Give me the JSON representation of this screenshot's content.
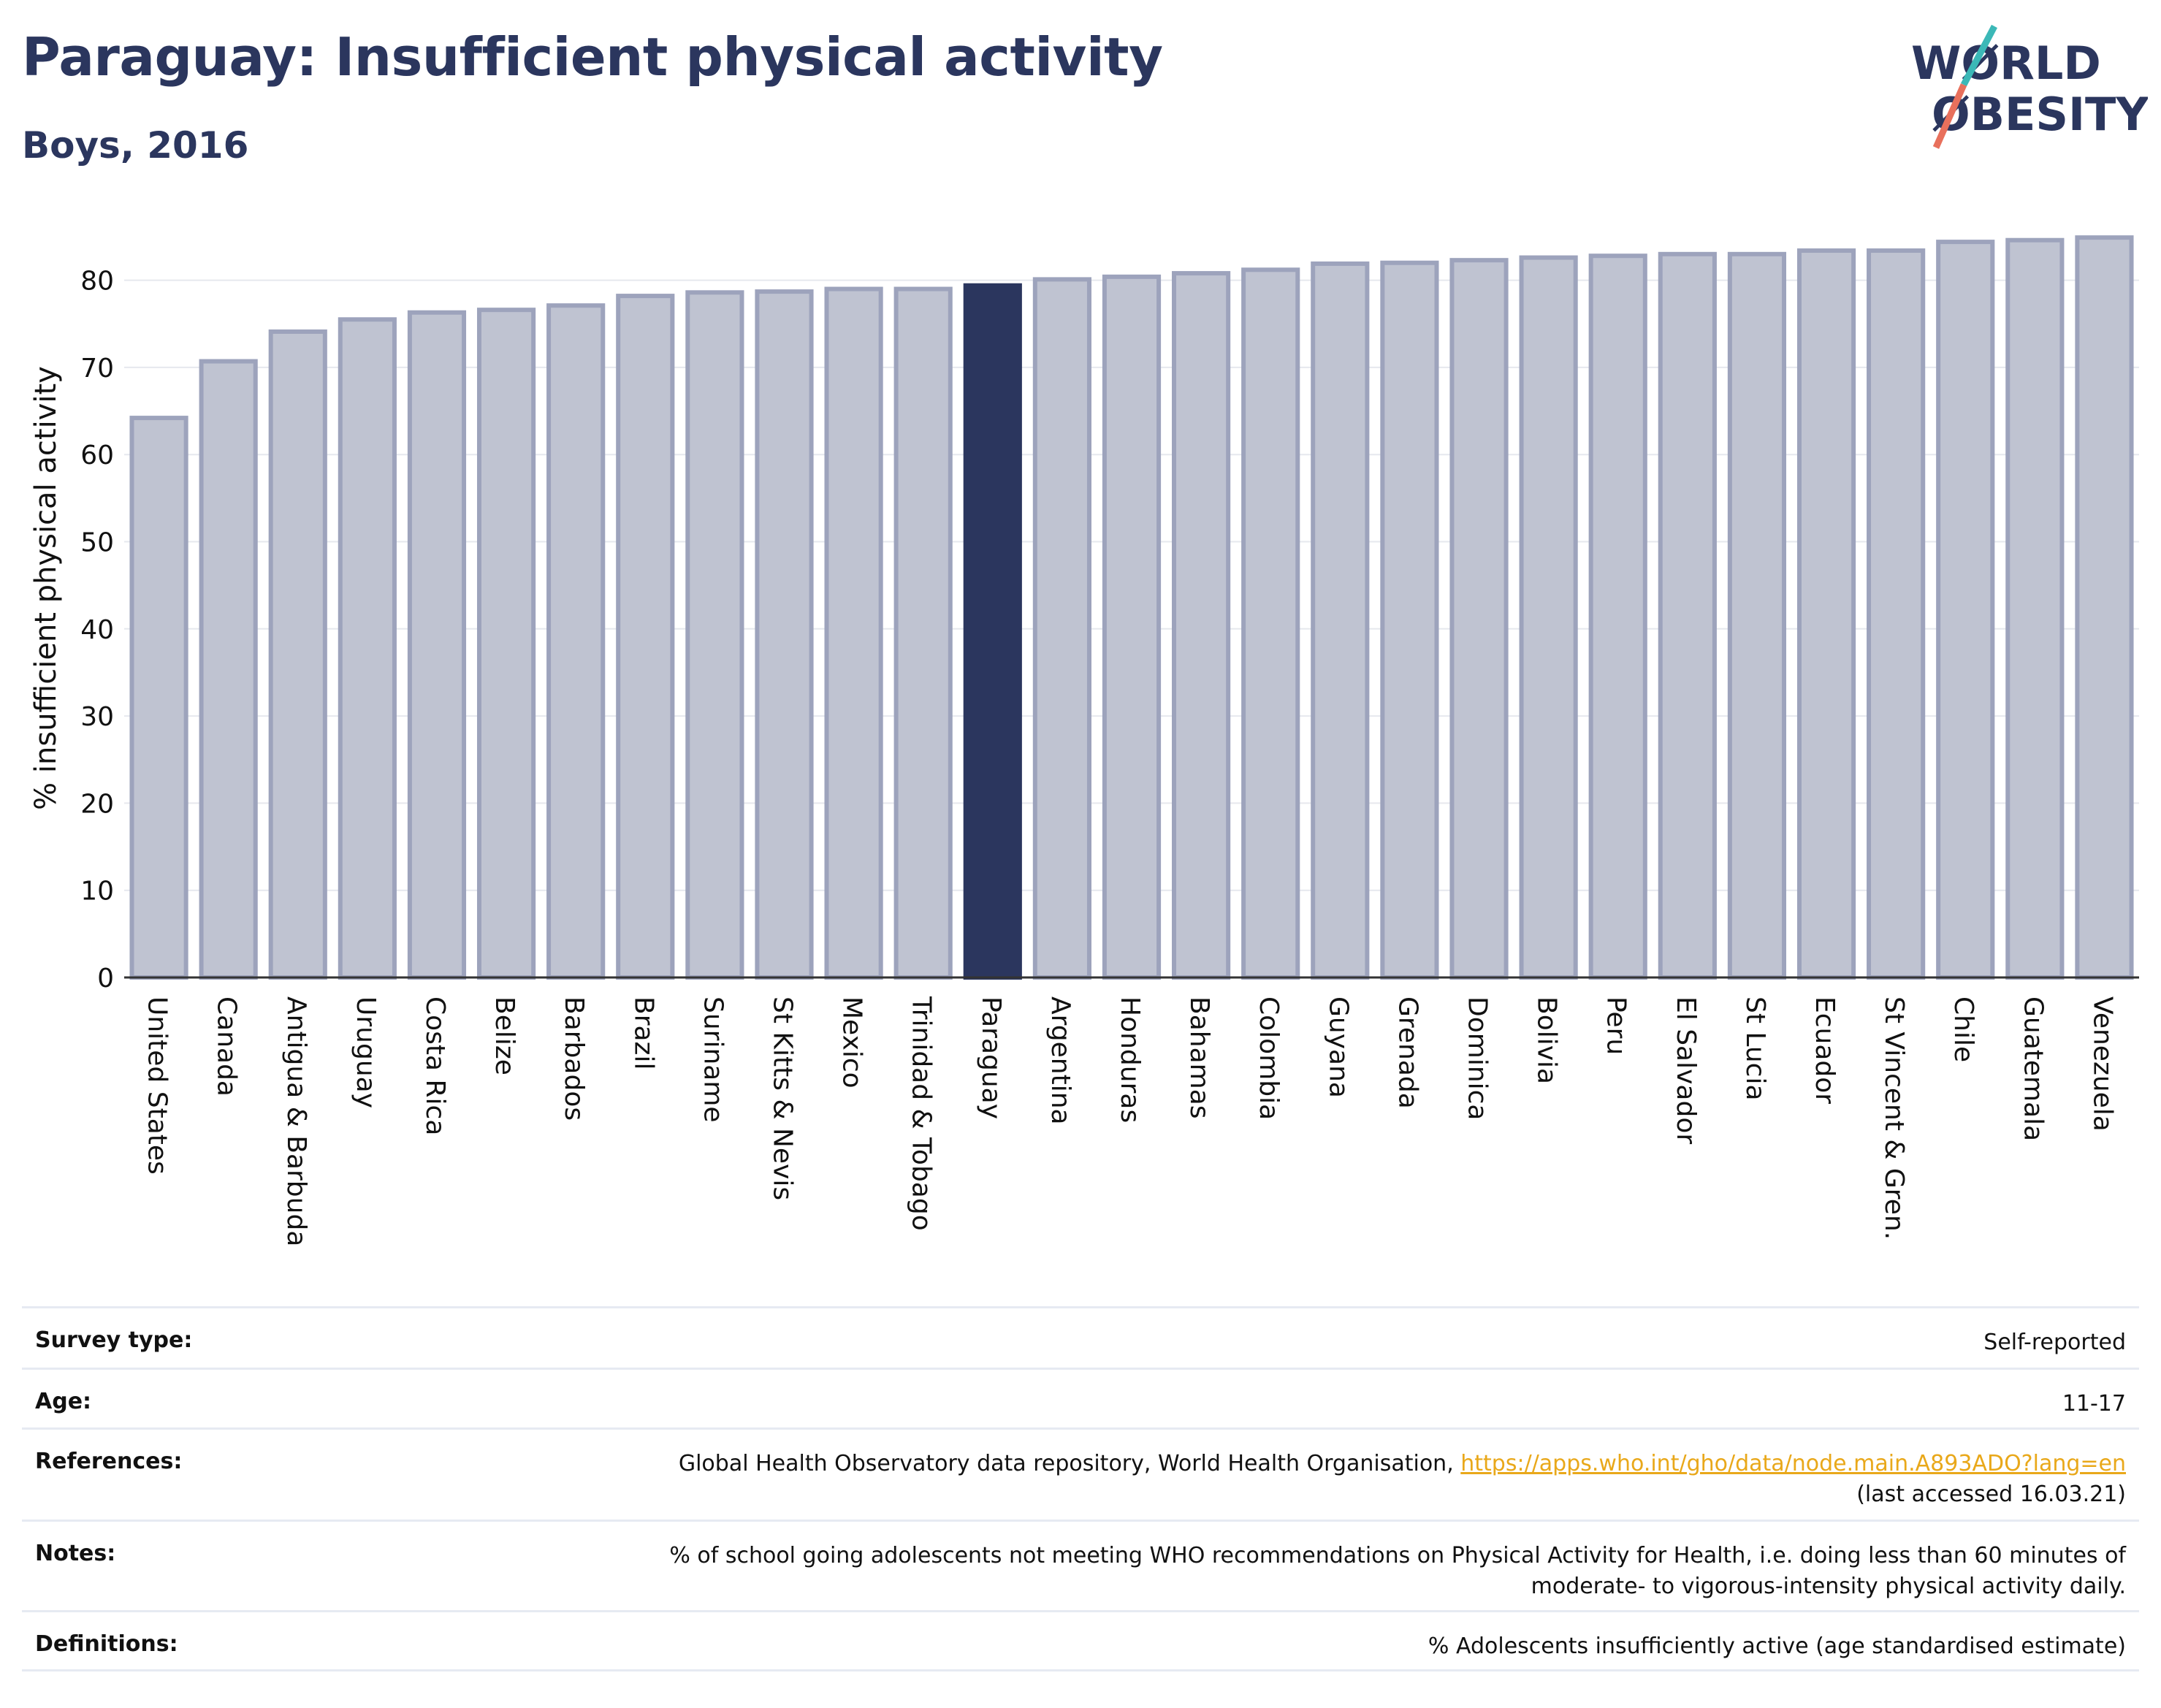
{
  "header": {
    "title": "Paraguay: Insufficient physical activity",
    "subtitle": "Boys, 2016"
  },
  "logo": {
    "line1": "WØRLD",
    "line2": "ØBESITY",
    "icon": "world-obesity-logo",
    "colors": {
      "text": "#2b365e",
      "slash_teal": "#3bb8b7",
      "slash_coral": "#e8705c"
    }
  },
  "chart_data": {
    "type": "bar",
    "title": "Paraguay: Insufficient physical activity",
    "subtitle": "Boys, 2016",
    "xlabel": "",
    "ylabel": "% insufficient physical activity",
    "ylim": [
      0,
      85
    ],
    "yticks": [
      0,
      10,
      20,
      30,
      40,
      50,
      60,
      70,
      80
    ],
    "grid": true,
    "highlight": "Paraguay",
    "colors": {
      "bar": "#bfc3d1",
      "bar_border": "#9da3bc",
      "highlight": "#2b365e"
    },
    "categories": [
      "United States",
      "Canada",
      "Antigua & Barbuda",
      "Uruguay",
      "Costa Rica",
      "Belize",
      "Barbados",
      "Brazil",
      "Suriname",
      "St Kitts & Nevis",
      "Mexico",
      "Trinidad & Tobago",
      "Paraguay",
      "Argentina",
      "Honduras",
      "Bahamas",
      "Colombia",
      "Guyana",
      "Grenada",
      "Dominica",
      "Bolivia",
      "Peru",
      "El Salvador",
      "St Lucia",
      "Ecuador",
      "St Vincent & Gren.",
      "Chile",
      "Guatemala",
      "Venezuela"
    ],
    "values": [
      64.2,
      70.7,
      74.1,
      75.5,
      76.3,
      76.6,
      77.1,
      78.2,
      78.6,
      78.7,
      79.0,
      79.0,
      79.4,
      80.1,
      80.4,
      80.8,
      81.2,
      81.9,
      82.0,
      82.3,
      82.6,
      82.8,
      83.0,
      83.0,
      83.4,
      83.4,
      84.4,
      84.6,
      84.9
    ]
  },
  "info": {
    "survey_type": {
      "label": "Survey type:",
      "value": "Self-reported"
    },
    "age": {
      "label": "Age:",
      "value": "11-17"
    },
    "references": {
      "label": "References:",
      "text": "Global Health Observatory data repository, World Health Organisation, ",
      "link": "https://apps.who.int/gho/data/node.main.A893ADO?lang=en",
      "accessed": "(last accessed 16.03.21)"
    },
    "notes": {
      "label": "Notes:",
      "line1": "% of school going adolescents not meeting WHO recommendations on Physical Activity for Health, i.e. doing less than 60 minutes of",
      "line2": "moderate- to vigorous-intensity physical activity daily."
    },
    "definitions": {
      "label": "Definitions:",
      "value": "% Adolescents insufficiently active (age standardised estimate)"
    }
  }
}
